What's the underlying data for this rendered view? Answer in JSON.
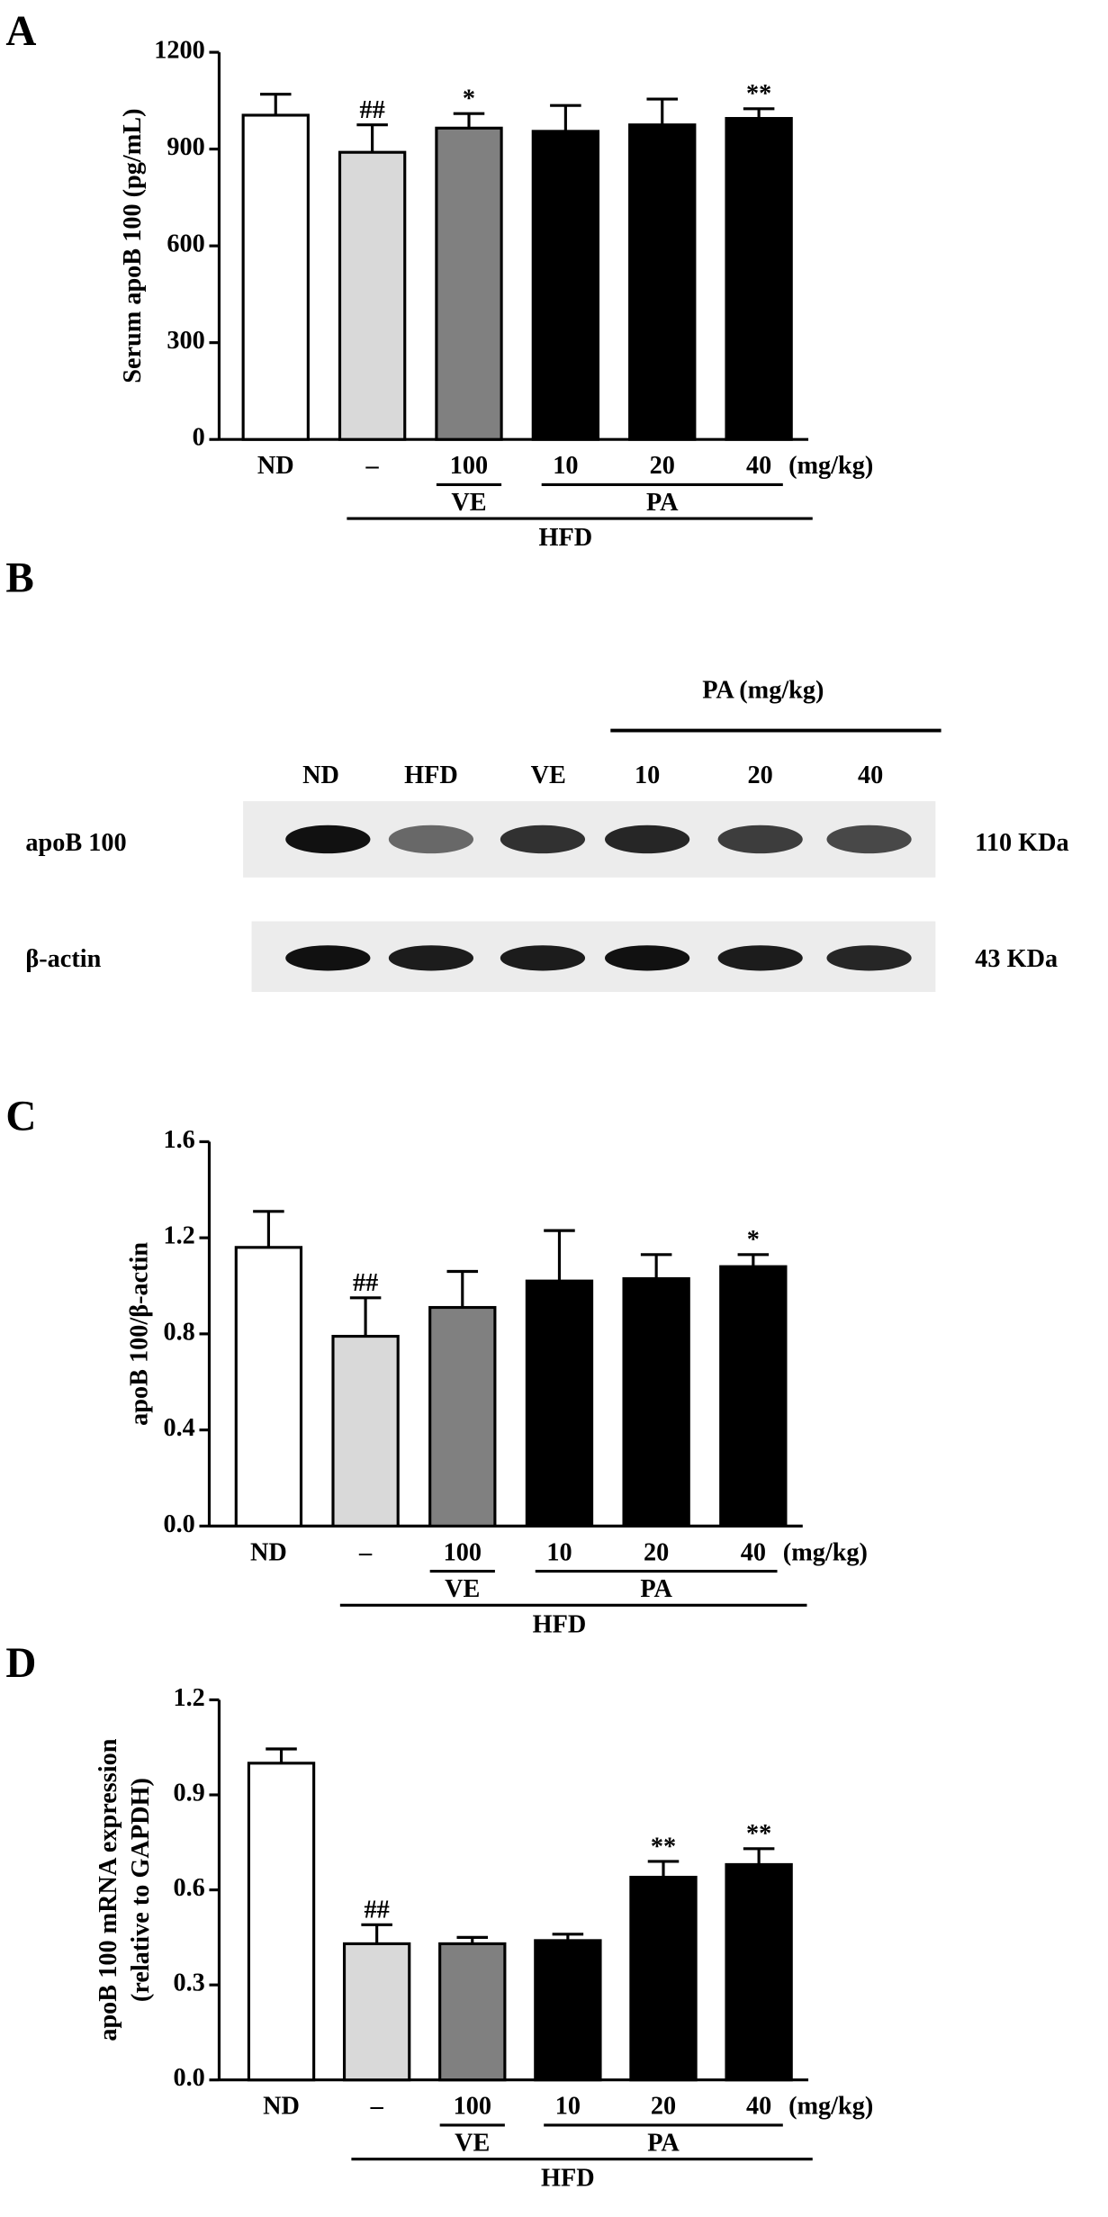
{
  "chart_data": [
    {
      "type": "bar",
      "panel_label": "A",
      "ylabel": [
        "Serum apoB 100 (pg/mL)"
      ],
      "categories": [
        "ND",
        "–",
        "100",
        "10",
        "20",
        "40"
      ],
      "unit_label": "(mg/kg)",
      "groups": [
        "VE",
        "PA",
        "HFD"
      ],
      "values": [
        1005,
        890,
        965,
        955,
        975,
        995
      ],
      "errors": [
        65,
        85,
        45,
        80,
        80,
        30
      ],
      "annotations": [
        null,
        "##",
        "*",
        null,
        null,
        "**"
      ],
      "colors": [
        "#ffffff",
        "#d9d9d9",
        "#808080",
        "#000000",
        "#000000",
        "#000000"
      ],
      "ylim": [
        0,
        1200
      ],
      "yticks": [
        0,
        300,
        600,
        900,
        1200
      ]
    },
    {
      "type": "bar",
      "panel_label": "C",
      "ylabel": [
        "apoB 100/β-actin"
      ],
      "categories": [
        "ND",
        "–",
        "100",
        "10",
        "20",
        "40"
      ],
      "unit_label": "(mg/kg)",
      "groups": [
        "VE",
        "PA",
        "HFD"
      ],
      "values": [
        1.16,
        0.79,
        0.91,
        1.02,
        1.03,
        1.08
      ],
      "errors": [
        0.15,
        0.16,
        0.15,
        0.21,
        0.1,
        0.05
      ],
      "annotations": [
        null,
        "##",
        null,
        null,
        null,
        "*"
      ],
      "colors": [
        "#ffffff",
        "#d9d9d9",
        "#808080",
        "#000000",
        "#000000",
        "#000000"
      ],
      "ylim": [
        0,
        1.6
      ],
      "yticks": [
        {
          "value": 0,
          "label": "0.0"
        },
        0.4,
        0.8,
        1.2,
        1.6
      ]
    },
    {
      "type": "bar",
      "panel_label": "D",
      "ylabel": [
        "apoB 100 mRNA expression",
        "(relative to GAPDH)"
      ],
      "categories": [
        "ND",
        "–",
        "100",
        "10",
        "20",
        "40"
      ],
      "unit_label": "(mg/kg)",
      "groups": [
        "VE",
        "PA",
        "HFD"
      ],
      "values": [
        1.0,
        0.43,
        0.43,
        0.44,
        0.64,
        0.68
      ],
      "errors": [
        0.045,
        0.06,
        0.02,
        0.02,
        0.05,
        0.05
      ],
      "annotations": [
        null,
        "##",
        null,
        null,
        "**",
        "**"
      ],
      "colors": [
        "#ffffff",
        "#d9d9d9",
        "#808080",
        "#000000",
        "#000000",
        "#000000"
      ],
      "ylim": [
        0,
        1.2
      ],
      "yticks": [
        {
          "value": 0,
          "label": "0.0"
        },
        0.3,
        0.6,
        0.9,
        1.2
      ]
    }
  ],
  "blot": {
    "panel_label": "B",
    "header": "PA (mg/kg)",
    "lanes": [
      "ND",
      "HFD",
      "VE",
      "10",
      "20",
      "40"
    ],
    "rows": [
      {
        "label": "apoB 100",
        "size": "110 KDa"
      },
      {
        "label": "β-actin",
        "size": "43 KDa"
      }
    ]
  }
}
